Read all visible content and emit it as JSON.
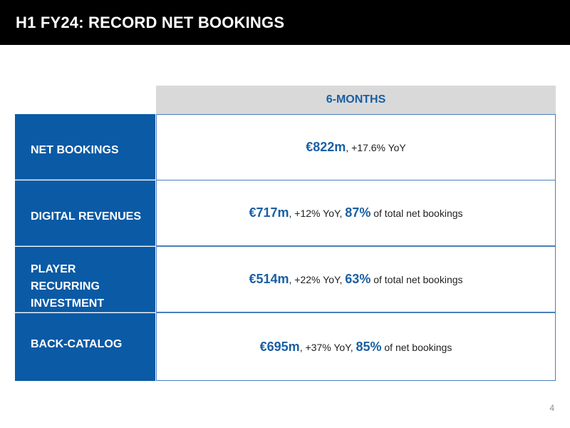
{
  "title": "H1 FY24: RECORD NET BOOKINGS",
  "column_header": "6-MONTHS",
  "rows": [
    {
      "label": "NET BOOKINGS",
      "amount": "€822m",
      "rest1": ", +17.6% YoY",
      "pct": "",
      "rest2": ""
    },
    {
      "label": "DIGITAL REVENUES",
      "amount": "€717m",
      "rest1": ", +12% YoY, ",
      "pct": "87%",
      "rest2": " of total net bookings"
    },
    {
      "label_lines": [
        "PLAYER",
        "RECURRING",
        "INVESTMENT"
      ],
      "amount": "€514m",
      "rest1": ", +22% YoY, ",
      "pct": "63%",
      "rest2": " of total net bookings"
    },
    {
      "label": "BACK-CATALOG",
      "amount": "€695m",
      "rest1": ", +37% YoY, ",
      "pct": "85%",
      "rest2": " of net bookings"
    }
  ],
  "page_number": "4",
  "colors": {
    "title_bar": "#000000",
    "label_fill": "#0a5aa5",
    "accent_text": "#1a5fa3",
    "header_fill": "#d9d9d9"
  }
}
